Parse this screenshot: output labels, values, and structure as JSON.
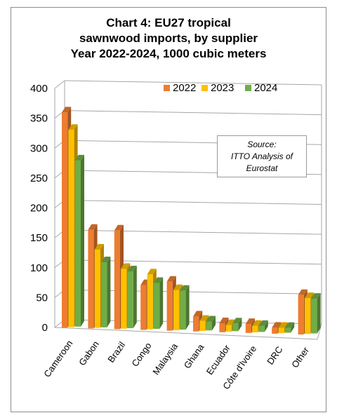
{
  "chart_data": {
    "type": "bar",
    "title_lines": [
      "Chart 4: EU27 tropical",
      "sawnwood imports, by supplier",
      "Year 2022-2024, 1000 cubic meters"
    ],
    "categories": [
      "Cameroon",
      "Gabon",
      "Brazil",
      "Congo",
      "Malaysia",
      "Ghana",
      "Ecuador",
      "Côte d'Ivoire",
      "DRC",
      "Other"
    ],
    "series": [
      {
        "name": "2022",
        "color": "#ED7D31",
        "values": [
          360,
          165,
          165,
          75,
          82,
          25,
          15,
          15,
          10,
          66
        ]
      },
      {
        "name": "2023",
        "color": "#FFC000",
        "values": [
          330,
          131,
          100,
          92,
          67,
          17,
          11,
          11,
          9,
          60
        ]
      },
      {
        "name": "2024",
        "color": "#70AD47",
        "values": [
          278,
          109,
          95,
          77,
          65,
          15,
          13,
          10,
          8,
          58
        ]
      }
    ],
    "y_ticks": [
      "0",
      "50",
      "100",
      "150",
      "200",
      "250",
      "300",
      "350",
      "400"
    ],
    "ylim": [
      0,
      400
    ],
    "grid": true,
    "legend_position": "top-right",
    "annotation_lines": [
      "Source:",
      "ITTO Analysis of",
      "Eurostat"
    ]
  }
}
